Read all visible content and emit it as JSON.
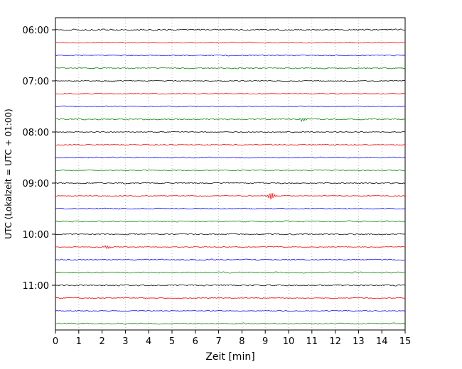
{
  "chart_data": {
    "type": "line",
    "subtype": "helicorder-seismogram",
    "title": "",
    "xlabel": "Zeit  [min]",
    "ylabel": "UTC (Lokalzeit = UTC + 01:00)",
    "xlim": [
      0,
      15
    ],
    "xticks": [
      "0",
      "1",
      "2",
      "3",
      "4",
      "5",
      "6",
      "7",
      "8",
      "9",
      "10",
      "11",
      "12",
      "13",
      "14",
      "15"
    ],
    "grid": "vertical dotted gridlines at each minute tick",
    "legend_position": "none",
    "trace_color_cycle": [
      "#000000",
      "#ff0000",
      "#0000ff",
      "#008000"
    ],
    "minutes_per_line": 15,
    "traces": [
      {
        "start": "06:00",
        "color": "#000000",
        "hour_label": "06:00"
      },
      {
        "start": "06:15",
        "color": "#ff0000",
        "hour_label": ""
      },
      {
        "start": "06:30",
        "color": "#0000ff",
        "hour_label": ""
      },
      {
        "start": "06:45",
        "color": "#008000",
        "hour_label": ""
      },
      {
        "start": "07:00",
        "color": "#000000",
        "hour_label": "07:00"
      },
      {
        "start": "07:15",
        "color": "#ff0000",
        "hour_label": ""
      },
      {
        "start": "07:30",
        "color": "#0000ff",
        "hour_label": ""
      },
      {
        "start": "07:45",
        "color": "#008000",
        "hour_label": ""
      },
      {
        "start": "08:00",
        "color": "#000000",
        "hour_label": "08:00"
      },
      {
        "start": "08:15",
        "color": "#ff0000",
        "hour_label": ""
      },
      {
        "start": "08:30",
        "color": "#0000ff",
        "hour_label": ""
      },
      {
        "start": "08:45",
        "color": "#008000",
        "hour_label": ""
      },
      {
        "start": "09:00",
        "color": "#000000",
        "hour_label": "09:00"
      },
      {
        "start": "09:15",
        "color": "#ff0000",
        "hour_label": ""
      },
      {
        "start": "09:30",
        "color": "#0000ff",
        "hour_label": ""
      },
      {
        "start": "09:45",
        "color": "#008000",
        "hour_label": ""
      },
      {
        "start": "10:00",
        "color": "#000000",
        "hour_label": "10:00"
      },
      {
        "start": "10:15",
        "color": "#ff0000",
        "hour_label": ""
      },
      {
        "start": "10:30",
        "color": "#0000ff",
        "hour_label": ""
      },
      {
        "start": "10:45",
        "color": "#008000",
        "hour_label": ""
      },
      {
        "start": "11:00",
        "color": "#000000",
        "hour_label": "11:00"
      },
      {
        "start": "11:15",
        "color": "#ff0000",
        "hour_label": ""
      },
      {
        "start": "11:30",
        "color": "#0000ff",
        "hour_label": ""
      },
      {
        "start": "11:45",
        "color": "#008000",
        "hour_label": ""
      }
    ],
    "events": [
      {
        "trace_index": 13,
        "trace_start": "09:15",
        "x_min": 9.25,
        "amplitude": 5,
        "note": "small burst on red trace"
      },
      {
        "trace_index": 7,
        "trace_start": "07:45",
        "x_min": 10.6,
        "amplitude": 2.5,
        "note": "tiny blip on green trace"
      },
      {
        "trace_index": 17,
        "trace_start": "10:15",
        "x_min": 2.2,
        "amplitude": 2,
        "note": "slightly larger noise on red trace"
      }
    ],
    "axis_color": "#000000",
    "grid_color": "#b0b0b0",
    "background_color": "#ffffff"
  }
}
